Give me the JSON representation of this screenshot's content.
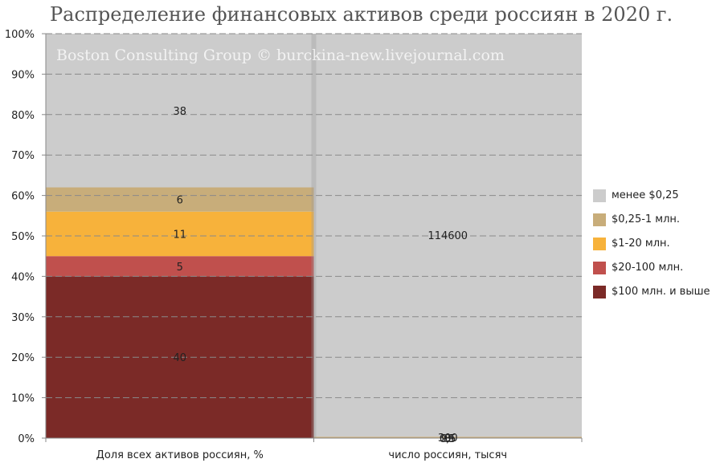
{
  "title": "Распределение финансовых активов среди россиян в 2020 г.",
  "watermark": "Boston Consulting Group © burckina-new.livejournal.com",
  "chart_data": {
    "type": "bar",
    "stacked": true,
    "normalized": true,
    "categories": [
      "Доля всех активов россиян, %",
      "число россиян, тысяч"
    ],
    "series": [
      {
        "name": "$100 млн. и выше",
        "color": "#7b2a27",
        "values": [
          40,
          0.5
        ],
        "labels": [
          "40",
          "0,5"
        ]
      },
      {
        "name": "$20-100 млн.",
        "color": "#c0504d",
        "values": [
          5,
          3
        ],
        "labels": [
          "5",
          "3"
        ]
      },
      {
        "name": "$1-20 млн.",
        "color": "#f7b23b",
        "values": [
          11,
          99
        ],
        "labels": [
          "11",
          "99"
        ]
      },
      {
        "name": "$0,25-1 млн.",
        "color": "#c8ad7a",
        "values": [
          6,
          300
        ],
        "labels": [
          "6",
          "300"
        ]
      },
      {
        "name": "менее $0,25",
        "color": "#cccccc",
        "values": [
          38,
          114600
        ],
        "labels": [
          "38",
          "114600"
        ]
      }
    ],
    "y_tick_labels": [
      "0%",
      "10%",
      "20%",
      "30%",
      "40%",
      "50%",
      "60%",
      "70%",
      "80%",
      "90%",
      "100%"
    ],
    "ylim": [
      0,
      100
    ],
    "grid": true,
    "legend_position": "right"
  }
}
